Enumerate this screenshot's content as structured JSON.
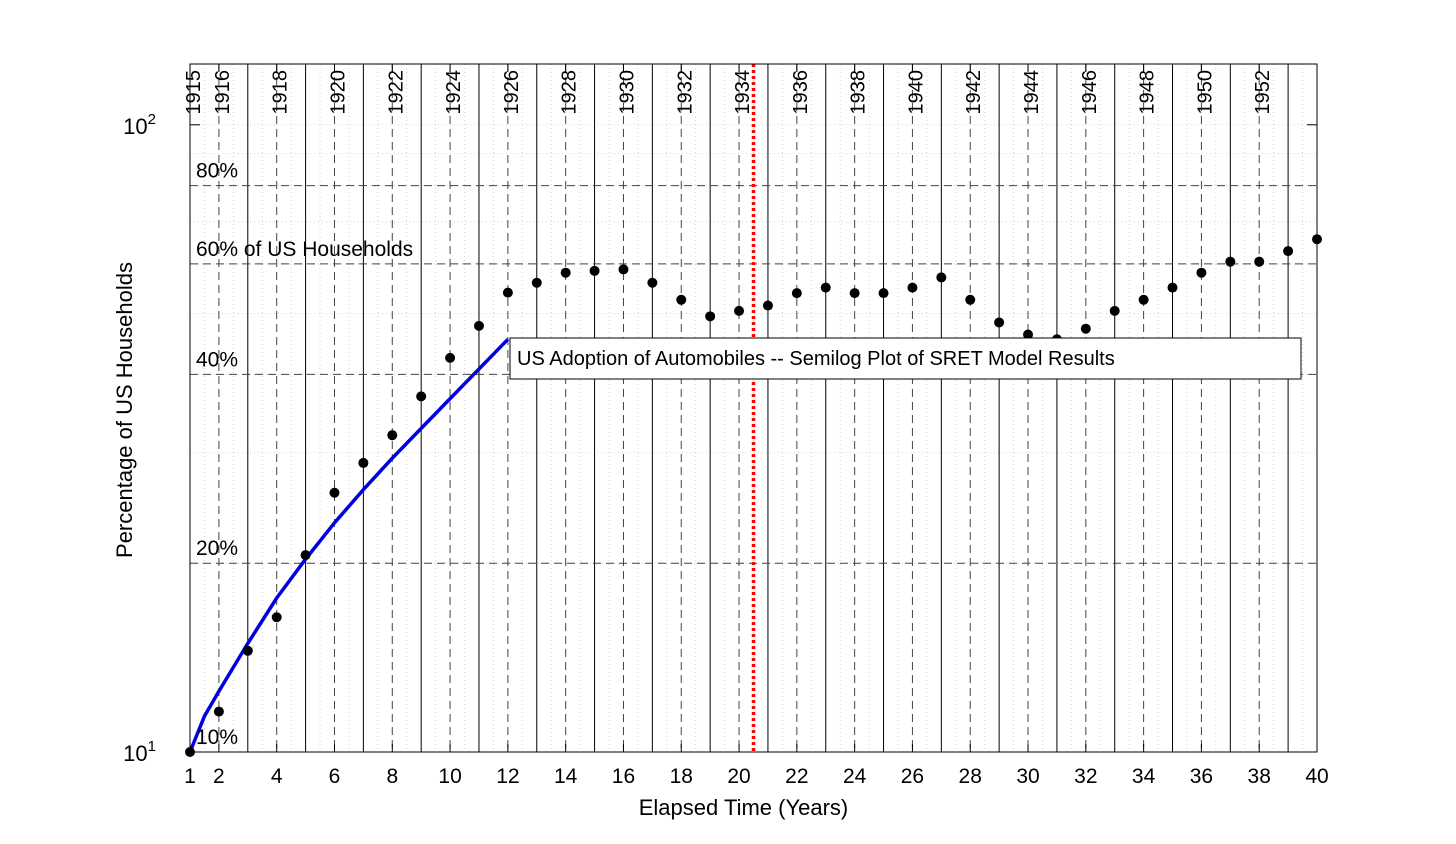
{
  "chart_data": {
    "type": "scatter",
    "title": "US Adoption of Automobiles -- Semilog Plot of SRET Model Results",
    "xlabel": "Elapsed Time (Years)",
    "ylabel": "Percentage of US Households",
    "yscale": "log",
    "xlim": [
      1,
      40
    ],
    "ylim": [
      10,
      125
    ],
    "grid": true,
    "x_ticks": [
      1,
      2,
      4,
      6,
      8,
      10,
      12,
      14,
      16,
      18,
      20,
      22,
      24,
      26,
      28,
      30,
      32,
      34,
      36,
      38,
      40
    ],
    "y_ticks": [
      {
        "value": 10,
        "base": "10",
        "exp": "1"
      },
      {
        "value": 100,
        "base": "10",
        "exp": "2"
      }
    ],
    "year_labels": [
      {
        "x": 1,
        "label": "1915"
      },
      {
        "x": 2,
        "label": "1916"
      },
      {
        "x": 4,
        "label": "1918"
      },
      {
        "x": 6,
        "label": "1920"
      },
      {
        "x": 8,
        "label": "1922"
      },
      {
        "x": 10,
        "label": "1924"
      },
      {
        "x": 12,
        "label": "1926"
      },
      {
        "x": 14,
        "label": "1928"
      },
      {
        "x": 16,
        "label": "1930"
      },
      {
        "x": 18,
        "label": "1932"
      },
      {
        "x": 20,
        "label": "1934"
      },
      {
        "x": 22,
        "label": "1936"
      },
      {
        "x": 24,
        "label": "1938"
      },
      {
        "x": 26,
        "label": "1940"
      },
      {
        "x": 28,
        "label": "1942"
      },
      {
        "x": 30,
        "label": "1944"
      },
      {
        "x": 32,
        "label": "1946"
      },
      {
        "x": 34,
        "label": "1948"
      },
      {
        "x": 36,
        "label": "1950"
      },
      {
        "x": 38,
        "label": "1952"
      }
    ],
    "percent_annotations": [
      {
        "y": 10,
        "label": "10%"
      },
      {
        "y": 20,
        "label": "20%"
      },
      {
        "y": 40,
        "label": "40%"
      },
      {
        "y": 60,
        "label": "60%  of US Households"
      },
      {
        "y": 80,
        "label": "80%"
      }
    ],
    "reference_line": {
      "x": 20.5,
      "color": "#ff0000",
      "style": "dotted"
    },
    "series": [
      {
        "type": "line",
        "color": "#0000dd",
        "x": [
          1,
          1.5,
          2,
          3,
          4,
          5,
          6,
          7,
          8,
          9,
          10,
          11,
          12
        ],
        "y": [
          10.0,
          11.4,
          12.5,
          14.9,
          17.6,
          20.3,
          23.2,
          26.2,
          29.4,
          32.8,
          36.6,
          40.8,
          45.5
        ]
      },
      {
        "type": "scatter",
        "color": "#000000",
        "x": [
          1,
          2,
          3,
          4,
          5,
          6,
          7,
          8,
          9,
          10,
          11,
          12,
          13,
          14,
          15,
          16,
          17,
          18,
          19,
          20,
          21,
          22,
          23,
          24,
          25,
          26,
          27,
          28,
          29,
          30,
          31,
          32,
          33,
          34,
          35,
          36,
          37,
          38,
          39,
          40
        ],
        "y": [
          10.0,
          11.6,
          14.5,
          16.4,
          20.6,
          25.9,
          28.9,
          32.0,
          36.9,
          42.5,
          47.8,
          54.0,
          56.0,
          58.1,
          58.5,
          58.8,
          56.0,
          52.6,
          49.5,
          50.5,
          51.5,
          53.9,
          55.0,
          53.9,
          53.9,
          55.0,
          57.1,
          52.6,
          48.4,
          46.3,
          45.5,
          47.3,
          50.5,
          52.6,
          55.0,
          58.1,
          60.5,
          60.5,
          62.9,
          65.7
        ]
      }
    ]
  }
}
